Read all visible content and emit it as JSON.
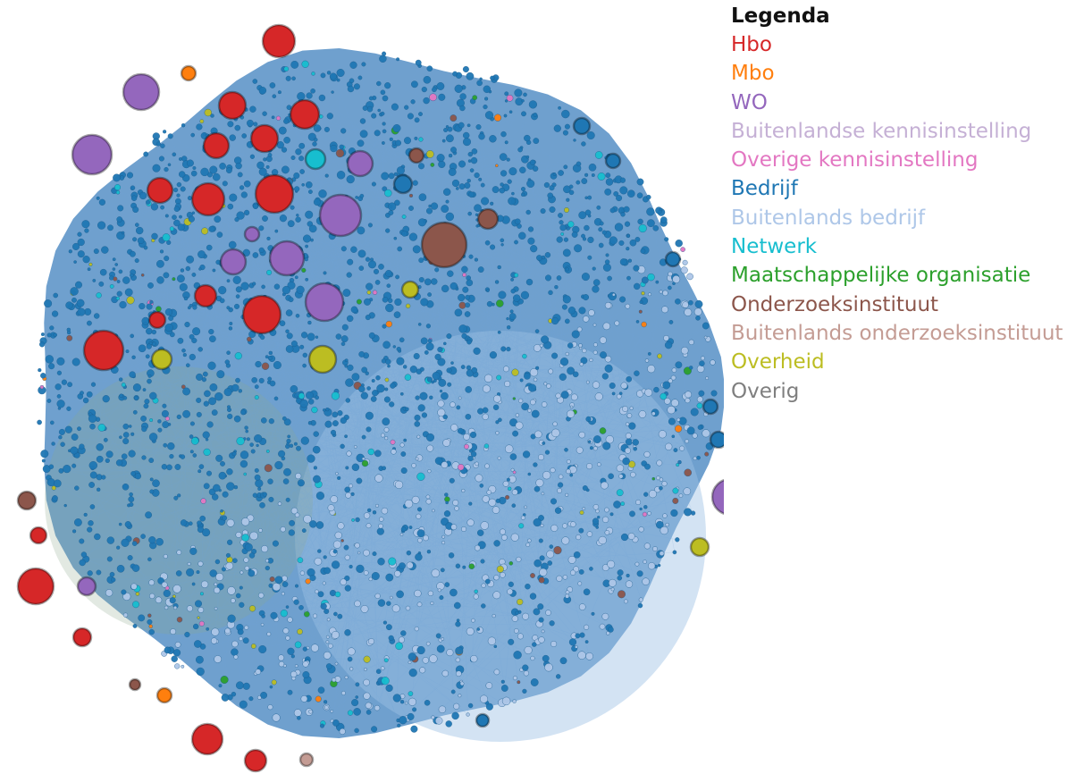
{
  "legend": {
    "title": "Legenda",
    "items": [
      {
        "label": "Hbo",
        "color": "#d62728"
      },
      {
        "label": "Mbo",
        "color": "#ff7f0e"
      },
      {
        "label": "WO",
        "color": "#9467bd"
      },
      {
        "label": "Buitenlandse kennisinstelling",
        "color": "#c5b0d5"
      },
      {
        "label": "Overige kennisinstelling",
        "color": "#e377c2"
      },
      {
        "label": "Bedrijf",
        "color": "#1f77b4"
      },
      {
        "label": "Buitenlands bedrijf",
        "color": "#aec7e8"
      },
      {
        "label": "Netwerk",
        "color": "#17becf"
      },
      {
        "label": "Maatschappelijke organisatie",
        "color": "#2ca02c"
      },
      {
        "label": "Onderzoeksinstituut",
        "color": "#8c564b"
      },
      {
        "label": "Buitenlands onderzoeksinstituut",
        "color": "#c49c94"
      },
      {
        "label": "Overheid",
        "color": "#bcbd22"
      },
      {
        "label": "Overig",
        "color": "#7f7f7f"
      }
    ]
  }
}
